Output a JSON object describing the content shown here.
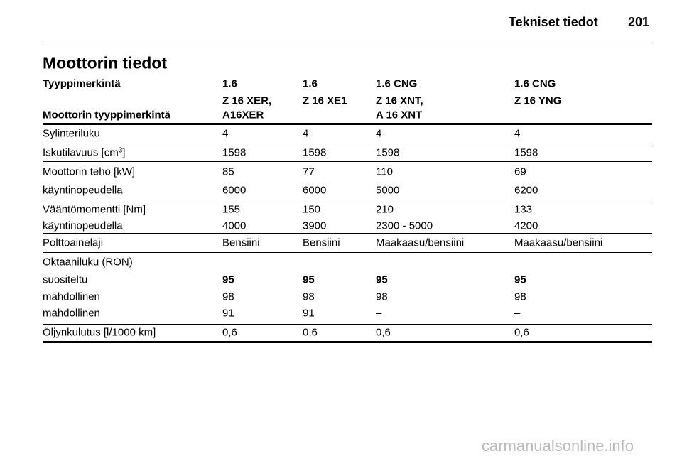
{
  "header": {
    "section": "Tekniset tiedot",
    "page": "201"
  },
  "title": "Moottorin tiedot",
  "table": {
    "head": [
      [
        "Tyyppimerkintä",
        "1.6",
        "1.6",
        "1.6 CNG",
        "1.6 CNG"
      ],
      [
        "Moottorin tyyppimerkintä",
        [
          "Z 16 XER,",
          "A16XER"
        ],
        [
          "Z 16 XE1"
        ],
        [
          "Z 16 XNT,",
          "A 16 XNT"
        ],
        [
          "Z 16 YNG"
        ]
      ]
    ],
    "groups": [
      [
        [
          "Sylinteriluku",
          "4",
          "4",
          "4",
          "4"
        ]
      ],
      [
        [
          [
            "Iskutilavuus [cm",
            "3",
            "]"
          ],
          "1598",
          "1598",
          "1598",
          "1598"
        ]
      ],
      [
        [
          "Moottorin teho [kW]",
          "85",
          "77",
          "110",
          "69"
        ],
        [
          "käyntinopeudella",
          "6000",
          "6000",
          "5000",
          "6200"
        ]
      ],
      [
        [
          "Vääntömomentti [Nm]",
          "155",
          "150",
          "210",
          "133"
        ],
        [
          "käyntinopeudella",
          "4000",
          "3900",
          "2300 - 5000",
          "4200"
        ]
      ],
      [
        [
          "Polttoainelaji",
          "Bensiini",
          "Bensiini",
          "Maakaasu/bensiini",
          "Maakaasu/bensiini"
        ]
      ],
      [
        [
          "Oktaaniluku (RON)"
        ],
        [
          "suositeltu",
          "95",
          "95",
          "95",
          "95"
        ],
        [
          "mahdollinen",
          "98",
          "98",
          "98",
          "98"
        ],
        [
          "mahdollinen",
          "91",
          "91",
          "–",
          "–"
        ]
      ],
      [
        [
          "Öljynkulutus [l/1000 km]",
          "0,6",
          "0,6",
          "0,6",
          "0,6"
        ]
      ]
    ]
  },
  "watermark": "carmanualsonline.info"
}
